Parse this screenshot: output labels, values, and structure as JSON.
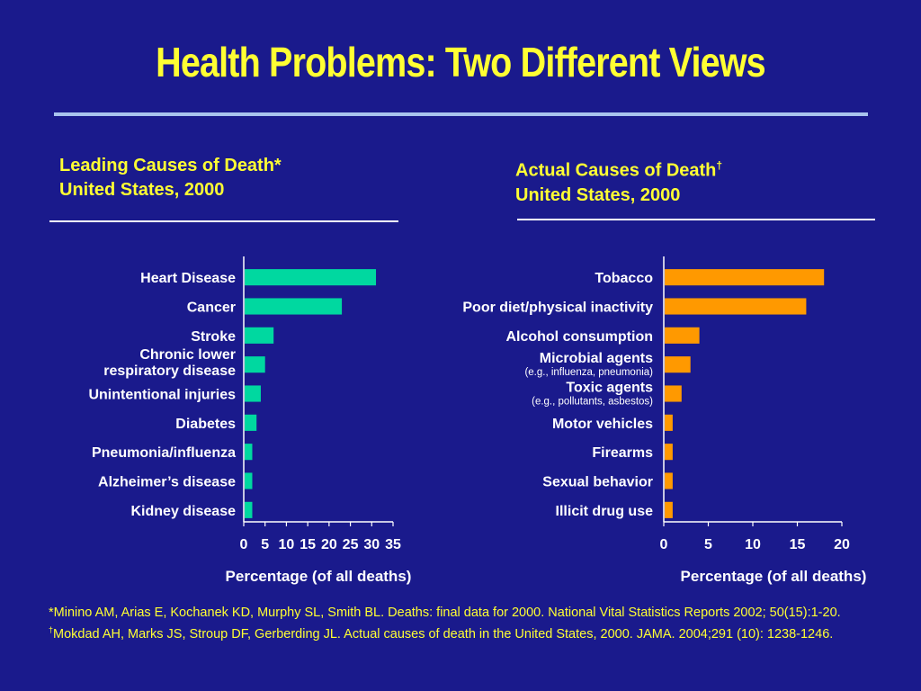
{
  "title": "Health Problems: Two Different Views",
  "left_panel": {
    "heading_line1": "Leading Causes of Death*",
    "heading_line2": "United States, 2000"
  },
  "right_panel": {
    "heading_line1": "Actual Causes of Death",
    "heading_mark": "†",
    "heading_line2": "United States, 2000"
  },
  "chart_data": [
    {
      "type": "bar",
      "orientation": "horizontal",
      "categories": [
        "Heart Disease",
        "Cancer",
        "Stroke",
        "Chronic lower\nrespiratory disease",
        "Unintentional injuries",
        "Diabetes",
        "Pneumonia/influenza",
        "Alzheimer’s disease",
        "Kidney disease"
      ],
      "values": [
        31,
        23,
        7,
        5,
        4,
        3,
        2,
        2,
        2
      ],
      "xlabel": "Percentage (of all deaths)",
      "xlim": [
        0,
        35
      ],
      "xticks": [
        0,
        5,
        10,
        15,
        20,
        25,
        30,
        35
      ],
      "color": "#00d8a0"
    },
    {
      "type": "bar",
      "orientation": "horizontal",
      "categories": [
        "Tobacco",
        "Poor diet/physical inactivity",
        "Alcohol consumption",
        "Microbial agents",
        "Toxic agents",
        "Motor vehicles",
        "Firearms",
        "Sexual behavior",
        "Illicit drug use"
      ],
      "sublabels": [
        "",
        "",
        "",
        "(e.g., influenza, pneumonia)",
        "(e.g., pollutants, asbestos)",
        "",
        "",
        "",
        ""
      ],
      "values": [
        18,
        16,
        4,
        3,
        2,
        1,
        1,
        1,
        1
      ],
      "xlabel": "Percentage (of all deaths)",
      "xlim": [
        0,
        20
      ],
      "xticks": [
        0,
        5,
        10,
        15,
        20
      ],
      "color": "#ff9900"
    }
  ],
  "footnotes": {
    "note1": "*Minino AM, Arias E, Kochanek KD, Murphy SL, Smith BL. Deaths: final data for 2000. National Vital Statistics Reports 2002; 50(15):1-20.",
    "note2_mark": "†",
    "note2": "Mokdad AH, Marks JS, Stroup DF, Gerberding JL. Actual causes of death in the United States, 2000. JAMA. 2004;291 (10): 1238-1246."
  },
  "colors": {
    "background": "#1a1a8c",
    "title": "#ffff33",
    "text": "#ffffff"
  }
}
